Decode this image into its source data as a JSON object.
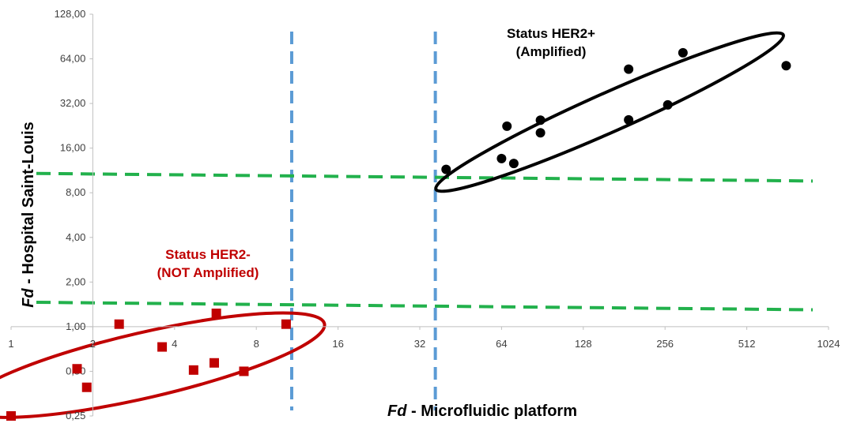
{
  "chart_data": {
    "type": "scatter",
    "title": "",
    "xlabel": {
      "italic": "Fd",
      "rest": " - Microfluidic platform"
    },
    "ylabel": {
      "italic": "Fd",
      "rest": " - Hospital Saint-Louis"
    },
    "x_scale": "log2",
    "y_scale": "log2",
    "xlim": [
      1,
      1024
    ],
    "ylim": [
      0.25,
      128
    ],
    "x_ticks": [
      "1",
      "2",
      "4",
      "8",
      "16",
      "32",
      "64",
      "128",
      "256",
      "512",
      "1024"
    ],
    "x_tick_values": [
      1,
      2,
      4,
      8,
      16,
      32,
      64,
      128,
      256,
      512,
      1024
    ],
    "y_ticks": [
      "0,25",
      "0,50",
      "1,00",
      "2,00",
      "4,00",
      "8,00",
      "16,00",
      "32,00",
      "64,00",
      "128,00"
    ],
    "y_tick_values": [
      0.25,
      0.5,
      1,
      2,
      4,
      8,
      16,
      32,
      64,
      128
    ],
    "grid": false,
    "series": [
      {
        "marker": "square",
        "color": "#C00000",
        "points": [
          [
            1.0,
            0.25
          ],
          [
            1.75,
            0.52
          ],
          [
            1.9,
            0.39
          ],
          [
            2.5,
            1.04
          ],
          [
            3.6,
            0.73
          ],
          [
            4.7,
            0.51
          ],
          [
            5.6,
            0.57
          ],
          [
            5.7,
            1.23
          ],
          [
            7.2,
            0.5
          ],
          [
            10.3,
            1.04
          ]
        ]
      },
      {
        "marker": "circle",
        "color": "#000000",
        "points": [
          [
            40,
            11.5
          ],
          [
            64,
            13.6
          ],
          [
            67,
            22.5
          ],
          [
            71,
            12.6
          ],
          [
            89,
            20.3
          ],
          [
            89,
            24.7
          ],
          [
            188,
            24.8
          ],
          [
            188,
            54.5
          ],
          [
            262,
            31.3
          ],
          [
            298,
            70.3
          ],
          [
            715,
            57.5
          ]
        ]
      }
    ],
    "reference_lines": [
      {
        "orientation": "vertical",
        "x": 10.8,
        "color": "#5B9BD5",
        "style": "dashed"
      },
      {
        "orientation": "vertical",
        "x": 36.5,
        "color": "#5B9BD5",
        "style": "dashed"
      },
      {
        "orientation": "sloped",
        "from": [
          1,
          10.8
        ],
        "to": [
          1024,
          9.6
        ],
        "color": "#22B14C",
        "style": "dashed"
      },
      {
        "orientation": "sloped",
        "from": [
          1,
          1.46
        ],
        "to": [
          1024,
          1.3
        ],
        "color": "#22B14C",
        "style": "dashed"
      }
    ],
    "annotations": [
      {
        "lines": [
          "Status HER2-",
          "(NOT Amplified)"
        ],
        "color": "#C00000",
        "group": "negative"
      },
      {
        "lines": [
          "Status HER2+",
          "(Amplified)"
        ],
        "color": "#000000",
        "group": "positive"
      }
    ],
    "groups": [
      {
        "name": "negative",
        "color": "#C00000",
        "ellipse_center": [
          3.1,
          0.55
        ],
        "ellipse_span_decades_x": 1.7,
        "ellipse_span_decades_y": 0.55,
        "rotation_deg": -13
      },
      {
        "name": "positive",
        "color": "#000000",
        "ellipse_center": [
          160,
          28
        ],
        "ellipse_span_decades_x": 1.75,
        "ellipse_span_decades_y": 0.33,
        "rotation_deg": -24
      }
    ]
  }
}
